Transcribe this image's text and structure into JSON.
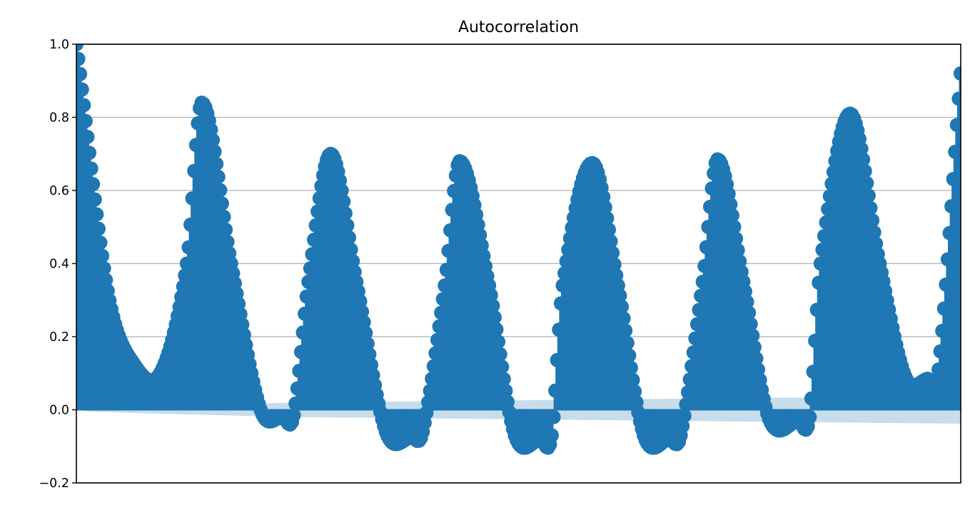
{
  "chart_data": {
    "type": "bar",
    "title": "Autocorrelation",
    "xlabel": "",
    "ylabel": "",
    "ylim": [
      -0.2,
      1.0
    ],
    "yticks": [
      1.0,
      0.8,
      0.6,
      0.4,
      0.2,
      0.0,
      -0.2
    ],
    "ytick_labels": [
      "1.0",
      "0.8",
      "0.6",
      "0.4",
      "0.2",
      "0.0",
      "−0.2"
    ],
    "x_ticks_visible": false,
    "grid": "horizontal",
    "lag_range": [
      0,
      120
    ],
    "marker": "filled-circle",
    "colors": {
      "stems": "#1f77b4",
      "confidence_band": "#1f77b4",
      "confidence_band_opacity": 0.25,
      "grid": "#b0b0b0",
      "axes": "#000000"
    },
    "series": [
      {
        "kind": "stem",
        "x": [
          0,
          4.3,
          8,
          11.5,
          15,
          17,
          21,
          25,
          28,
          29.5,
          31.5,
          34.5,
          38,
          42,
          45.5,
          47,
          50,
          52,
          56,
          59.5,
          63,
          64.5,
          66,
          70,
          73.5,
          77,
          80.5,
          82,
          85,
          87,
          90.5,
          94,
          98,
          99.5,
          101,
          105,
          109,
          112.5,
          115.5,
          117,
          120
        ],
        "y": [
          1.0,
          0.32,
          0.12,
          0.105,
          0.4,
          0.84,
          0.4,
          0.0,
          -0.02,
          -0.015,
          0.35,
          0.7,
          0.35,
          -0.06,
          -0.075,
          -0.06,
          0.34,
          0.68,
          0.34,
          -0.07,
          -0.08,
          -0.07,
          0.34,
          0.675,
          0.34,
          -0.07,
          -0.08,
          -0.07,
          0.35,
          0.685,
          0.35,
          -0.025,
          -0.03,
          -0.02,
          0.4,
          0.81,
          0.4,
          0.09,
          0.085,
          0.11,
          0.92
        ]
      },
      {
        "kind": "confidence_band",
        "x": [
          0,
          2,
          10,
          20,
          30,
          40,
          50,
          60,
          70,
          80,
          90,
          100,
          110,
          120
        ],
        "upper": [
          0.0,
          0.005,
          0.01,
          0.015,
          0.02,
          0.022,
          0.024,
          0.026,
          0.028,
          0.03,
          0.032,
          0.034,
          0.035,
          0.036
        ],
        "lower": [
          0.0,
          -0.005,
          -0.01,
          -0.015,
          -0.02,
          -0.022,
          -0.024,
          -0.026,
          -0.028,
          -0.03,
          -0.032,
          -0.034,
          -0.036,
          -0.038
        ]
      }
    ]
  }
}
